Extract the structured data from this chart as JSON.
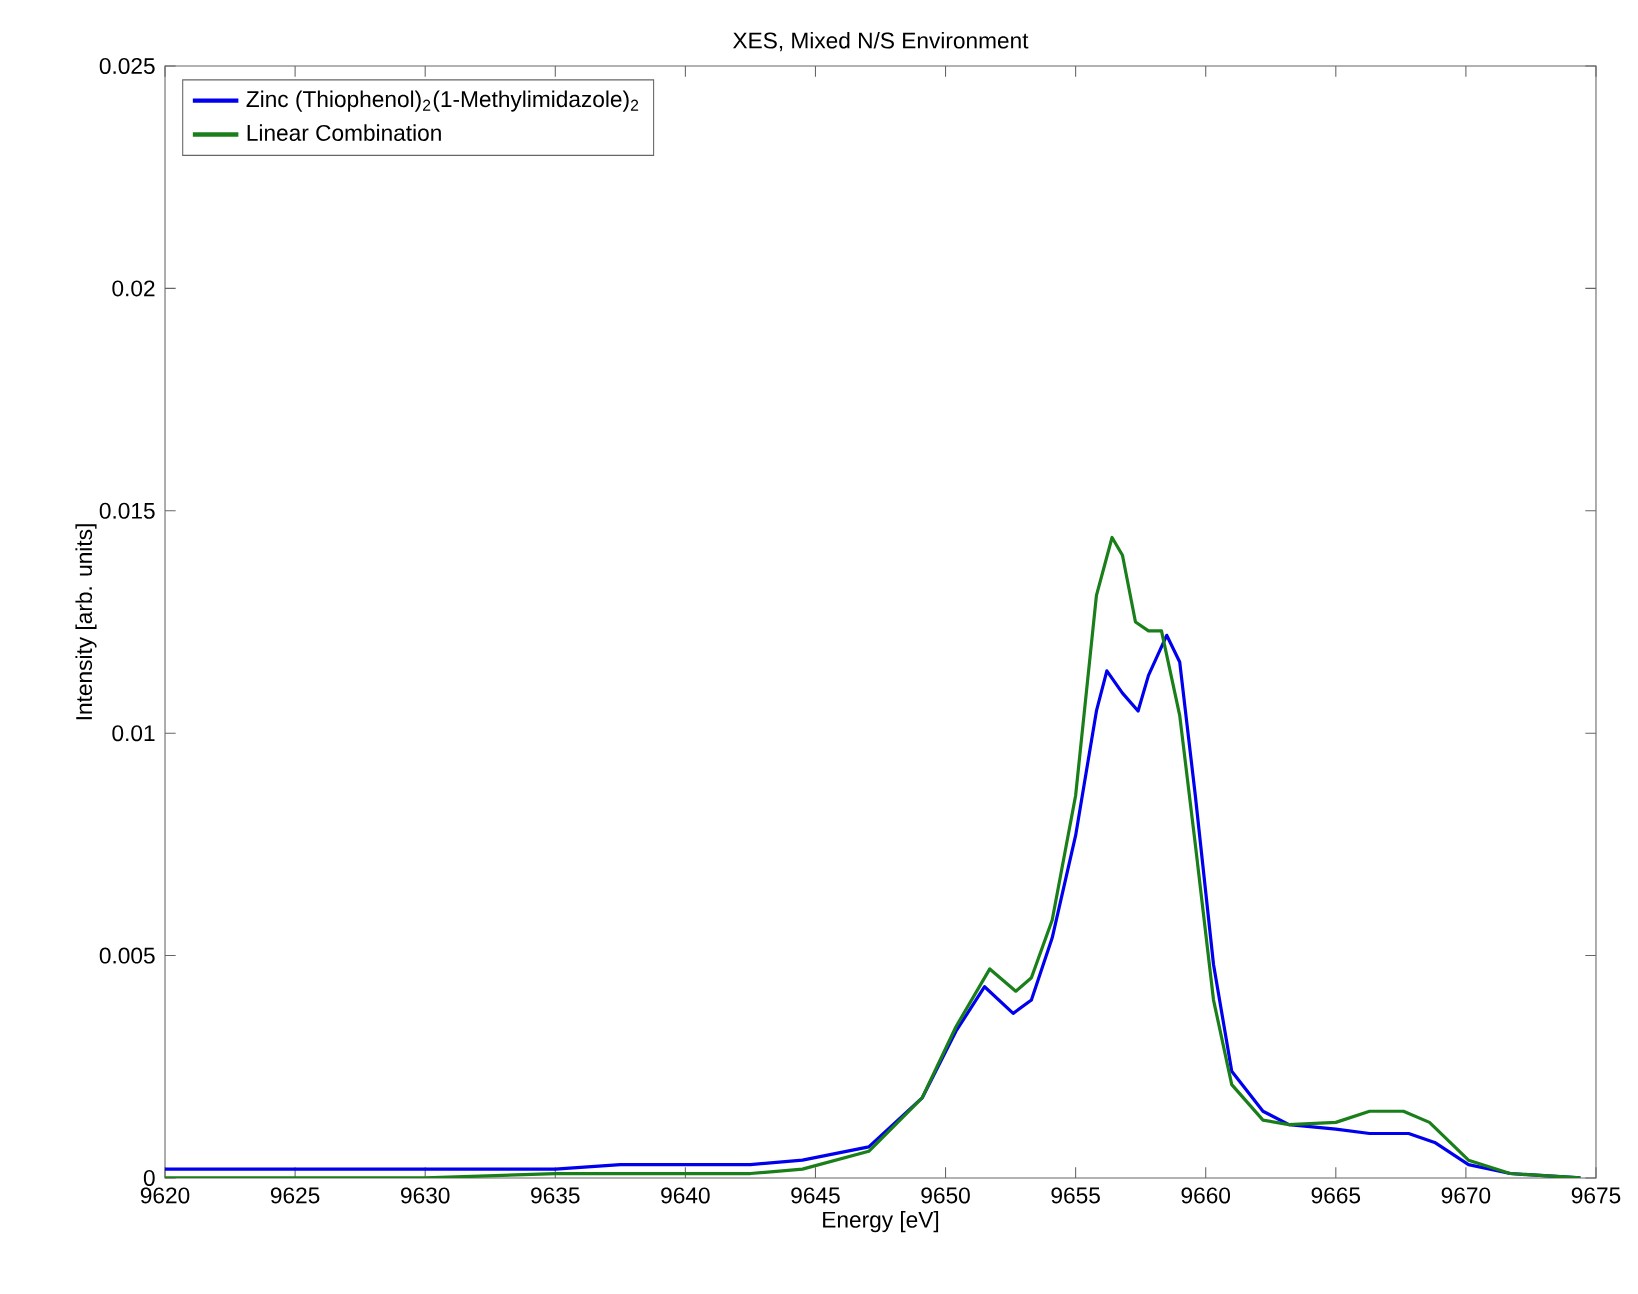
{
  "chart_data": {
    "type": "line",
    "title": "XES, Mixed N/S Environment",
    "xlabel": "Energy [eV]",
    "ylabel": "Intensity [arb. units]",
    "xlim": [
      9620,
      9675
    ],
    "ylim": [
      0,
      0.025
    ],
    "xticks": [
      9620,
      9625,
      9630,
      9635,
      9640,
      9645,
      9650,
      9655,
      9660,
      9665,
      9670,
      9675
    ],
    "yticks": [
      0,
      0.005,
      0.01,
      0.015,
      0.02,
      0.025
    ],
    "grid": false,
    "legend": "top left",
    "marker": "none",
    "line_style": "solid",
    "series": [
      {
        "name": "Zinc (Thiophenol)$_{2}$(1-Methylimidazole)$_{2}$",
        "color": "#0000ee",
        "x": [
          9620,
          9625,
          9630,
          9635,
          9637.5,
          9640,
          9642.5,
          9644.5,
          9647.05,
          9649.1,
          9650.4,
          9651.5,
          9652.6,
          9653.3,
          9654.1,
          9655.0,
          9655.8,
          9656.2,
          9656.8,
          9657.4,
          9657.8,
          9658.5,
          9659.0,
          9659.6,
          9660.3,
          9661.0,
          9662.2,
          9663.2,
          9665.0,
          9666.3,
          9667.8,
          9668.8,
          9670.1,
          9671.7,
          9674.4
        ],
        "values": [
          0.0002,
          0.0002,
          0.0002,
          0.0002,
          0.0003,
          0.0003,
          0.0003,
          0.0004,
          0.0007,
          0.0018,
          0.0033,
          0.0043,
          0.0037,
          0.004,
          0.0054,
          0.0077,
          0.0105,
          0.0114,
          0.0109,
          0.0105,
          0.0113,
          0.0122,
          0.0116,
          0.0086,
          0.0048,
          0.0024,
          0.0015,
          0.0012,
          0.0011,
          0.001,
          0.001,
          0.0008,
          0.0003,
          0.0001,
          0.0
        ]
      },
      {
        "name": "Linear Combination",
        "color": "#1a7f1a",
        "x": [
          9620,
          9625,
          9630,
          9635,
          9637.5,
          9640,
          9642.5,
          9644.5,
          9647.05,
          9649.1,
          9650.4,
          9651.7,
          9652.7,
          9653.3,
          9654.1,
          9655.0,
          9655.8,
          9656.4,
          9656.8,
          9657.3,
          9657.8,
          9658.3,
          9659.0,
          9659.6,
          9660.3,
          9661.0,
          9662.2,
          9663.2,
          9665.0,
          9666.3,
          9667.6,
          9668.6,
          9670.1,
          9671.7,
          9674.4
        ],
        "values": [
          0.0,
          0.0,
          0.0,
          0.0001,
          0.0001,
          0.0001,
          0.0001,
          0.0002,
          0.0006,
          0.0018,
          0.0034,
          0.0047,
          0.0042,
          0.0045,
          0.0058,
          0.0086,
          0.0131,
          0.0144,
          0.014,
          0.0125,
          0.0123,
          0.0123,
          0.0104,
          0.0075,
          0.004,
          0.0021,
          0.0013,
          0.0012,
          0.00125,
          0.0015,
          0.0015,
          0.00125,
          0.0004,
          0.0001,
          0.0
        ]
      }
    ]
  }
}
